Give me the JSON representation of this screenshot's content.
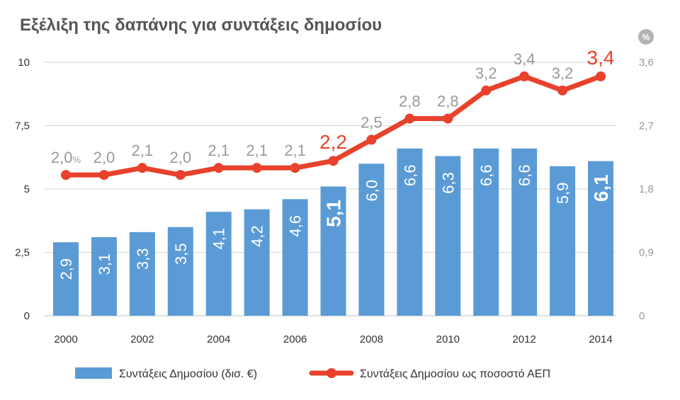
{
  "chart_data": {
    "type": "bar+line",
    "title": "Εξέλιξη της δαπάνης για συντάξεις δημοσίου",
    "x": [
      2000,
      2001,
      2002,
      2003,
      2004,
      2005,
      2006,
      2007,
      2008,
      2009,
      2010,
      2011,
      2012,
      2013,
      2014
    ],
    "x_tick_labels": [
      "2000",
      "2002",
      "2004",
      "2006",
      "2008",
      "2010",
      "2012",
      "2014"
    ],
    "left_axis": {
      "ylim": [
        0,
        10
      ],
      "ticks": [
        "0",
        "2,5",
        "5",
        "7,5",
        "10"
      ]
    },
    "right_axis": {
      "unit": "%",
      "ylim": [
        0,
        3.6
      ],
      "ticks": [
        "0",
        "0,9",
        "1,8",
        "2,7",
        "3,6"
      ]
    },
    "series": [
      {
        "name": "Συντάξεις Δημοσίου (δισ. €)",
        "type": "bar",
        "axis": "left",
        "color": "#5b9bd5",
        "values": [
          2.9,
          3.1,
          3.3,
          3.5,
          4.1,
          4.2,
          4.6,
          5.1,
          6.0,
          6.6,
          6.3,
          6.6,
          6.6,
          5.9,
          6.1
        ],
        "labels": [
          "2,9",
          "3,1",
          "3,3",
          "3,5",
          "4,1",
          "4,2",
          "4,6",
          "5,1",
          "6,0",
          "6,6",
          "6,3",
          "6,6",
          "6,6",
          "5,9",
          "6,1"
        ],
        "highlighted": [
          2007,
          2014
        ]
      },
      {
        "name": "Συντάξεις Δημοσίου ως ποσοστό ΑΕΠ",
        "type": "line",
        "axis": "right",
        "color": "#e8412c",
        "values": [
          2.0,
          2.0,
          2.1,
          2.0,
          2.1,
          2.1,
          2.1,
          2.2,
          2.5,
          2.8,
          2.8,
          3.2,
          3.4,
          3.2,
          3.4
        ],
        "labels": [
          "2,0",
          "2,0",
          "2,1",
          "2,0",
          "2,1",
          "2,1",
          "2,1",
          "2,2",
          "2,5",
          "2,8",
          "2,8",
          "3,2",
          "3,4",
          "3,2",
          "3,4"
        ],
        "first_label_suffix": "%",
        "highlighted": [
          2007,
          2014
        ]
      }
    ],
    "legend_position": "bottom"
  },
  "colors": {
    "grid": "#d6d6d6",
    "title": "#555555",
    "bar": "#5b9bd5",
    "line": "#e8412c",
    "muted_label": "#9a9a9a",
    "unit_badge": "#b3b3b3"
  }
}
